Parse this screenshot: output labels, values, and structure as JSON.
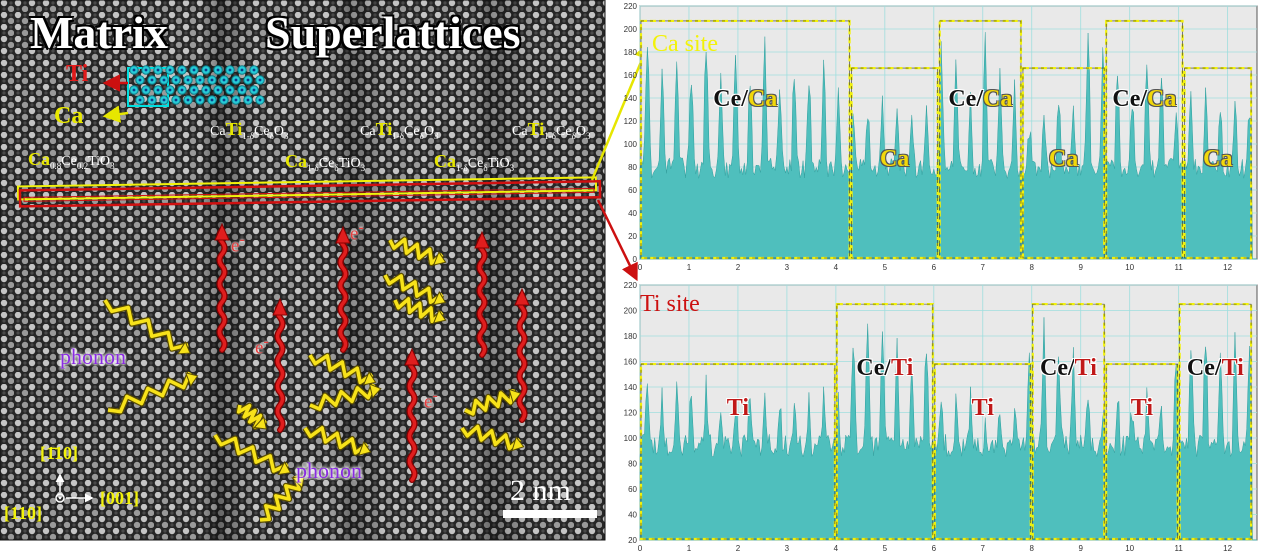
{
  "figure": {
    "title_matrix": "Matrix",
    "title_superlattices": "Superlattices",
    "legend_ti": "Ti",
    "legend_ca": "Ca",
    "composition_matrix": {
      "stem": "Ca",
      "rest": "TiO",
      "sub1": "0.8",
      "ce": "Ce",
      "sub2": "0.2",
      "sub3": "3"
    },
    "composition_ca_site": {
      "stem": "Ca",
      "sub1": "1-δ",
      "ce": "Ce",
      "sub2": "δ",
      "rest": "TiO",
      "sub3": "3"
    },
    "composition_ti_site": {
      "ca": "Ca",
      "stem": "Ti",
      "sub1": "1-δ",
      "ce": "Ce",
      "sub2": "δ",
      "rest": "O",
      "sub3": "3"
    },
    "electron_label": "e",
    "electron_sup": "-",
    "phonon_label": "phonon",
    "direction_up": "[1̄10]",
    "direction_right": "[001]",
    "direction_origin": "[110]",
    "scale_bar": "2 nm",
    "site_ca": "Ca site",
    "site_ti": "Ti site"
  },
  "chart_data": [
    {
      "type": "area",
      "panel": "Ca site",
      "xlim": [
        0,
        12.6
      ],
      "ylim": [
        0,
        220
      ],
      "x_ticks": [
        "0",
        "1",
        "2",
        "3",
        "4",
        "5",
        "6",
        "7",
        "8",
        "9",
        "10",
        "11",
        "12"
      ],
      "y_ticks": [
        "0",
        "20",
        "40",
        "60",
        "80",
        "100",
        "120",
        "140",
        "160",
        "180",
        "200",
        "220"
      ],
      "grid": true,
      "series_color": "#4fbfbd",
      "peak_positions": [
        0.15,
        0.45,
        0.75,
        1.05,
        1.35,
        1.65,
        1.95,
        2.25,
        2.55,
        2.85,
        3.15,
        3.45,
        3.75,
        4.05,
        4.35,
        4.65,
        4.95,
        5.25,
        5.55,
        5.85,
        6.15,
        6.45,
        6.75,
        7.05,
        7.35,
        7.65,
        7.95,
        8.25,
        8.55,
        8.85,
        9.15,
        9.45,
        9.75,
        10.05,
        10.35,
        10.65,
        10.95,
        11.25,
        11.55,
        11.85,
        12.15,
        12.45
      ],
      "peak_heights": [
        205,
        170,
        190,
        175,
        200,
        168,
        185,
        172,
        195,
        160,
        180,
        170,
        176,
        165,
        150,
        140,
        155,
        135,
        148,
        138,
        190,
        180,
        150,
        200,
        175,
        160,
        130,
        145,
        150,
        140,
        200,
        190,
        172,
        155,
        182,
        165,
        150,
        148,
        155,
        140,
        150,
        145
      ],
      "background_level": 70,
      "regions": [
        {
          "x": [
            0,
            4.3
          ],
          "level": 207,
          "label": "Ce/Ca",
          "label_parts": [
            "Ce",
            "/",
            "Ca"
          ]
        },
        {
          "x": [
            4.3,
            6.1
          ],
          "level": 166,
          "label": "Ca"
        },
        {
          "x": [
            6.1,
            7.8
          ],
          "level": 207,
          "label": "Ce/Ca",
          "label_parts": [
            "Ce",
            "/",
            "Ca"
          ]
        },
        {
          "x": [
            7.8,
            9.5
          ],
          "level": 166,
          "label": "Ca"
        },
        {
          "x": [
            9.5,
            11.1
          ],
          "level": 207,
          "label": "Ce/Ca",
          "label_parts": [
            "Ce",
            "/",
            "Ca"
          ]
        },
        {
          "x": [
            11.1,
            12.5
          ],
          "level": 166,
          "label": "Ca"
        }
      ]
    },
    {
      "type": "area",
      "panel": "Ti site",
      "xlim": [
        0,
        12.6
      ],
      "ylim": [
        20,
        220
      ],
      "x_ticks": [
        "0",
        "1",
        "2",
        "3",
        "4",
        "5",
        "6",
        "7",
        "8",
        "9",
        "10",
        "11",
        "12"
      ],
      "y_ticks": [
        "20",
        "40",
        "60",
        "80",
        "100",
        "120",
        "140",
        "160",
        "180",
        "200",
        "220"
      ],
      "grid": true,
      "series_color": "#4fbfbd",
      "peak_positions": [
        0.15,
        0.45,
        0.75,
        1.05,
        1.35,
        1.65,
        1.95,
        2.25,
        2.55,
        2.85,
        3.15,
        3.45,
        3.75,
        4.05,
        4.35,
        4.65,
        4.95,
        5.25,
        5.55,
        5.85,
        6.15,
        6.45,
        6.75,
        7.05,
        7.35,
        7.65,
        7.95,
        8.25,
        8.55,
        8.85,
        9.15,
        9.45,
        9.75,
        10.05,
        10.35,
        10.65,
        10.95,
        11.25,
        11.55,
        11.85,
        12.15,
        12.45
      ],
      "peak_heights": [
        150,
        140,
        145,
        148,
        152,
        138,
        144,
        150,
        140,
        146,
        142,
        136,
        145,
        140,
        190,
        195,
        185,
        180,
        175,
        188,
        140,
        135,
        145,
        130,
        142,
        138,
        190,
        195,
        180,
        175,
        150,
        140,
        148,
        136,
        142,
        138,
        180,
        185,
        192,
        175,
        188,
        180
      ],
      "background_level": 85,
      "regions": [
        {
          "x": [
            0,
            4.0
          ],
          "level": 158,
          "label": "Ti"
        },
        {
          "x": [
            4.0,
            6.0
          ],
          "level": 205,
          "label": "Ce/Ti",
          "label_parts": [
            "Ce",
            "/",
            "Ti"
          ]
        },
        {
          "x": [
            6.0,
            8.0
          ],
          "level": 158,
          "label": "Ti"
        },
        {
          "x": [
            8.0,
            9.5
          ],
          "level": 205,
          "label": "Ce/Ti",
          "label_parts": [
            "Ce",
            "/",
            "Ti"
          ]
        },
        {
          "x": [
            9.5,
            11.0
          ],
          "level": 158,
          "label": "Ti"
        },
        {
          "x": [
            11.0,
            12.5
          ],
          "level": 205,
          "label": "Ce/Ti",
          "label_parts": [
            "Ce",
            "/",
            "Ti"
          ]
        }
      ]
    }
  ]
}
